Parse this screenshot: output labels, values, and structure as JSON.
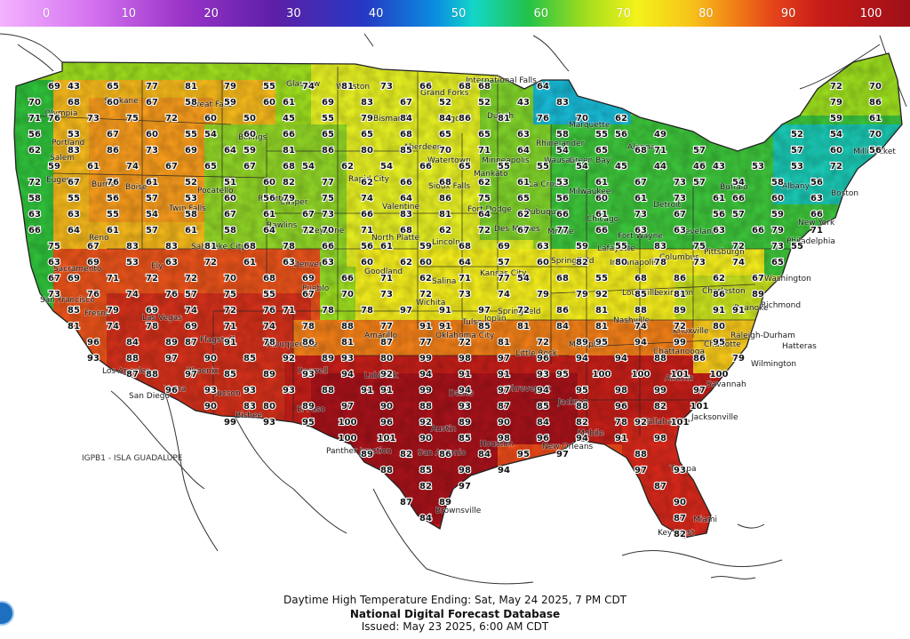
{
  "legend": {
    "ticks": [
      "0",
      "10",
      "20",
      "30",
      "40",
      "50",
      "60",
      "70",
      "80",
      "90",
      "100"
    ],
    "min": 0,
    "max": 100
  },
  "colors": {
    "cold": "#0aa0e0",
    "cool": "#2fbf3a",
    "mild": "#b8e619",
    "warm": "#f7e21b",
    "hot_orange": "#f08a1c",
    "hot_red": "#e23a1a",
    "very_hot": "#b8131a",
    "extreme": "#8f0d1e",
    "ocean": "#ffffff",
    "border": "#222222"
  },
  "map": {
    "foreign_labels": [
      {
        "id": "isla-guadalupe",
        "text": "IGPB1 - ISLA GUADALUPE"
      }
    ],
    "cities": [
      {
        "id": "glasgow",
        "name": "Glasgow"
      },
      {
        "id": "williston",
        "name": "Williston"
      },
      {
        "id": "grand-forks",
        "name": "Grand Forks"
      },
      {
        "id": "international-falls",
        "name": "International Falls"
      },
      {
        "id": "bismarck",
        "name": "Bismarck"
      },
      {
        "id": "fargo",
        "name": "Fargo"
      },
      {
        "id": "duluth",
        "name": "Duluth"
      },
      {
        "id": "billings",
        "name": "Billings"
      },
      {
        "id": "great-falls",
        "name": "Great Falls"
      },
      {
        "id": "spokane",
        "name": "Spokane"
      },
      {
        "id": "olympia",
        "name": "Olympia"
      },
      {
        "id": "portland",
        "name": "Portland"
      },
      {
        "id": "salem",
        "name": "Salem"
      },
      {
        "id": "eugene",
        "name": "Eugene"
      },
      {
        "id": "boise",
        "name": "Boise"
      },
      {
        "id": "burns",
        "name": "Burns"
      },
      {
        "id": "twin-falls",
        "name": "Twin Falls"
      },
      {
        "id": "pocatello",
        "name": "Pocatello"
      },
      {
        "id": "rapid-city",
        "name": "Rapid City"
      },
      {
        "id": "aberdeen",
        "name": "Aberdeen"
      },
      {
        "id": "watertown",
        "name": "Watertown"
      },
      {
        "id": "sioux-falls",
        "name": "Sioux Falls"
      },
      {
        "id": "minneapolis",
        "name": "Minneapolis"
      },
      {
        "id": "mankato",
        "name": "Mankato"
      },
      {
        "id": "la-crosse",
        "name": "La Crosse"
      },
      {
        "id": "wausau",
        "name": "Wausau"
      },
      {
        "id": "milwaukee",
        "name": "Milwaukee"
      },
      {
        "id": "marquette",
        "name": "Marquette"
      },
      {
        "id": "rhinelander",
        "name": "Rhinelander"
      },
      {
        "id": "green-bay",
        "name": "Green Bay"
      },
      {
        "id": "alpena",
        "name": "Alpena"
      },
      {
        "id": "detroit",
        "name": "Detroit"
      },
      {
        "id": "cleveland",
        "name": "Cleveland"
      },
      {
        "id": "columbus",
        "name": "Columbus"
      },
      {
        "id": "pittsburgh",
        "name": "Pittsburgh"
      },
      {
        "id": "buffalo",
        "name": "Buffalo"
      },
      {
        "id": "albany",
        "name": "Albany"
      },
      {
        "id": "boston",
        "name": "Boston"
      },
      {
        "id": "new-york",
        "name": "New York"
      },
      {
        "id": "philadelphia",
        "name": "Philadelphia"
      },
      {
        "id": "washington",
        "name": "Washington"
      },
      {
        "id": "richmond",
        "name": "Richmond"
      },
      {
        "id": "roanoke",
        "name": "Roanoke"
      },
      {
        "id": "raleigh-durham",
        "name": "Raleigh-Durham"
      },
      {
        "id": "charlotte",
        "name": "Charlotte"
      },
      {
        "id": "hatteras",
        "name": "Hatteras"
      },
      {
        "id": "wilmington",
        "name": "Wilmington"
      },
      {
        "id": "charleston-wv",
        "name": "Charleston"
      },
      {
        "id": "millinocket",
        "name": "Millinocket"
      },
      {
        "id": "des-moines",
        "name": "Des Moines"
      },
      {
        "id": "fort-dodge",
        "name": "Fort Dodge"
      },
      {
        "id": "dubuque",
        "name": "Dubuque"
      },
      {
        "id": "moline",
        "name": "Moline"
      },
      {
        "id": "chicago",
        "name": "Chicago"
      },
      {
        "id": "springfield-il",
        "name": "Springfield"
      },
      {
        "id": "indianapolis",
        "name": "Indianapolis"
      },
      {
        "id": "fort-wayne",
        "name": "Fort Wayne"
      },
      {
        "id": "lafayette",
        "name": "Lafayette"
      },
      {
        "id": "louisville",
        "name": "Louisville"
      },
      {
        "id": "lexington",
        "name": "Lexington"
      },
      {
        "id": "nashville",
        "name": "Nashville"
      },
      {
        "id": "knoxville",
        "name": "Knoxville"
      },
      {
        "id": "chattanooga",
        "name": "Chattanooga"
      },
      {
        "id": "atlanta",
        "name": "Atlanta"
      },
      {
        "id": "savannah",
        "name": "Savannah"
      },
      {
        "id": "jacksonville",
        "name": "Jacksonville"
      },
      {
        "id": "tampa",
        "name": "Tampa"
      },
      {
        "id": "miami",
        "name": "Miami"
      },
      {
        "id": "key-west",
        "name": "Key West"
      },
      {
        "id": "tallahassee",
        "name": "Tallahassee"
      },
      {
        "id": "mobile",
        "name": "Mobile"
      },
      {
        "id": "new-orleans",
        "name": "New Orleans"
      },
      {
        "id": "jackson",
        "name": "Jackson"
      },
      {
        "id": "memphis",
        "name": "Memphis"
      },
      {
        "id": "little-rock",
        "name": "Little Rock"
      },
      {
        "id": "shreveport",
        "name": "Shreveport"
      },
      {
        "id": "houston",
        "name": "Houston"
      },
      {
        "id": "san-antonio",
        "name": "San Antonio"
      },
      {
        "id": "austin",
        "name": "Austin"
      },
      {
        "id": "dallas",
        "name": "Dallas"
      },
      {
        "id": "brownsville",
        "name": "Brownsville"
      },
      {
        "id": "el-paso",
        "name": "El Paso"
      },
      {
        "id": "panther-junction",
        "name": "Panther Junction"
      },
      {
        "id": "lubbock",
        "name": "Lubbock"
      },
      {
        "id": "amarillo",
        "name": "Amarillo"
      },
      {
        "id": "oklahoma-city",
        "name": "Oklahoma City"
      },
      {
        "id": "tulsa",
        "name": "Tulsa"
      },
      {
        "id": "wichita",
        "name": "Wichita"
      },
      {
        "id": "salina",
        "name": "Salina"
      },
      {
        "id": "kansas-city",
        "name": "Kansas City"
      },
      {
        "id": "springfield-mo",
        "name": "Springfield"
      },
      {
        "id": "joplin",
        "name": "Joplin"
      },
      {
        "id": "lincoln",
        "name": "Lincoln"
      },
      {
        "id": "north-platte",
        "name": "North Platte"
      },
      {
        "id": "valentine",
        "name": "Valentine"
      },
      {
        "id": "denver",
        "name": "Denver"
      },
      {
        "id": "pueblo",
        "name": "Pueblo"
      },
      {
        "id": "goodland",
        "name": "Goodland"
      },
      {
        "id": "cheyenne",
        "name": "Cheyenne"
      },
      {
        "id": "casper",
        "name": "Casper"
      },
      {
        "id": "riverton",
        "name": "Riverton"
      },
      {
        "id": "rawlins",
        "name": "Rawlins"
      },
      {
        "id": "salt-lake-city",
        "name": "Salt Lake City"
      },
      {
        "id": "ely",
        "name": "Ely"
      },
      {
        "id": "reno",
        "name": "Reno"
      },
      {
        "id": "sacramento",
        "name": "Sacramento"
      },
      {
        "id": "san-francisco",
        "name": "San Francisco"
      },
      {
        "id": "fresno",
        "name": "Fresno"
      },
      {
        "id": "los-angeles",
        "name": "Los Angeles"
      },
      {
        "id": "san-diego",
        "name": "San Diego"
      },
      {
        "id": "las-vegas",
        "name": "Las Vegas"
      },
      {
        "id": "phoenix",
        "name": "Phoenix"
      },
      {
        "id": "tucson",
        "name": "Tucson"
      },
      {
        "id": "bisbee",
        "name": "Bisbee"
      },
      {
        "id": "yuma",
        "name": "Yuma"
      },
      {
        "id": "flagstaff",
        "name": "Flagstaff"
      },
      {
        "id": "albuquerque",
        "name": "Albuquerque"
      },
      {
        "id": "roswell",
        "name": "Roswell"
      }
    ],
    "temps": [
      69,
      43,
      65,
      77,
      81,
      79,
      55,
      74,
      81,
      73,
      66,
      68,
      68,
      64,
      72,
      70,
      70,
      68,
      60,
      67,
      58,
      59,
      60,
      61,
      69,
      83,
      67,
      52,
      52,
      43,
      83,
      79,
      86,
      71,
      76,
      73,
      75,
      72,
      60,
      50,
      45,
      55,
      79,
      84,
      84,
      86,
      81,
      76,
      70,
      62,
      59,
      61,
      56,
      53,
      67,
      60,
      55,
      54,
      60,
      66,
      65,
      65,
      68,
      65,
      65,
      63,
      58,
      55,
      56,
      49,
      52,
      54,
      70,
      62,
      83,
      86,
      73,
      69,
      64,
      59,
      81,
      86,
      80,
      85,
      70,
      71,
      64,
      54,
      65,
      68,
      71,
      57,
      57,
      60,
      56,
      59,
      61,
      74,
      67,
      65,
      67,
      68,
      54,
      62,
      54,
      66,
      65,
      55,
      55,
      54,
      45,
      44,
      46,
      43,
      53,
      53,
      72,
      72,
      67,
      76,
      61,
      52,
      51,
      60,
      82,
      77,
      62,
      66,
      68,
      62,
      61,
      53,
      61,
      67,
      73,
      57,
      54,
      58,
      56,
      58,
      55,
      56,
      57,
      53,
      60,
      56,
      79,
      75,
      74,
      64,
      86,
      75,
      65,
      56,
      60,
      61,
      73,
      61,
      66,
      60,
      63,
      63,
      63,
      55,
      54,
      58,
      67,
      61,
      67,
      73,
      66,
      83,
      81,
      64,
      62,
      66,
      61,
      73,
      67,
      56,
      57,
      59,
      66,
      66,
      64,
      61,
      57,
      61,
      58,
      64,
      72,
      70,
      71,
      68,
      62,
      72,
      67,
      77,
      66,
      63,
      63,
      63,
      66,
      79,
      71,
      75,
      67,
      83,
      83,
      81,
      68,
      78,
      66,
      56,
      61,
      59,
      68,
      69,
      63,
      59,
      55,
      83,
      75,
      72,
      73,
      55,
      63,
      69,
      53,
      63,
      72,
      61,
      63,
      63,
      60,
      62,
      60,
      64,
      57,
      60,
      82,
      80,
      78,
      73,
      74,
      65,
      67,
      69,
      71,
      72,
      72,
      70,
      68,
      69,
      66,
      71,
      62,
      71,
      77,
      54,
      68,
      55,
      68,
      86,
      62,
      67,
      73,
      76,
      74,
      76,
      57,
      75,
      55,
      67,
      70,
      73,
      72,
      73,
      74,
      79,
      79,
      92,
      85,
      81,
      86,
      89,
      85,
      79,
      69,
      74,
      72,
      76,
      71,
      78,
      78,
      97,
      91,
      97,
      72,
      86,
      81,
      88,
      89,
      91,
      91,
      81,
      74,
      78,
      69,
      71,
      74,
      78,
      88,
      77,
      91,
      91,
      85,
      81,
      84,
      81,
      74,
      72,
      80,
      96,
      84,
      89,
      87,
      91,
      78,
      86,
      81,
      87,
      77,
      72,
      81,
      72,
      89,
      95,
      94,
      99,
      95,
      93,
      88,
      97,
      90,
      85,
      92,
      89,
      93,
      80,
      99,
      98,
      97,
      96,
      94,
      94,
      88,
      86,
      79,
      87,
      88,
      97,
      85,
      89,
      93,
      94,
      92,
      94,
      91,
      91,
      93,
      95,
      100,
      100,
      101,
      100,
      96,
      93,
      93,
      93,
      88,
      91,
      91,
      99,
      94,
      97,
      94,
      95,
      98,
      99,
      97,
      90,
      83,
      80,
      89,
      97,
      90,
      88,
      93,
      87,
      85,
      88,
      96,
      82,
      101,
      99,
      93,
      95,
      100,
      96,
      92,
      89,
      90,
      84,
      82,
      78,
      92,
      101,
      100,
      101,
      90,
      85,
      98,
      96,
      94,
      91,
      98,
      89,
      82,
      86,
      84,
      95,
      97,
      88,
      88,
      85,
      98,
      94,
      97,
      93,
      82,
      97,
      87,
      87,
      89,
      90,
      84,
      87,
      82
    ]
  },
  "footer": {
    "line1": "Daytime High Temperature Ending: Sat, May 24 2025, 7 PM CDT",
    "line2": "National Digital Forecast Database",
    "line3": "Issued: May 23 2025, 6:00 AM CDT"
  }
}
